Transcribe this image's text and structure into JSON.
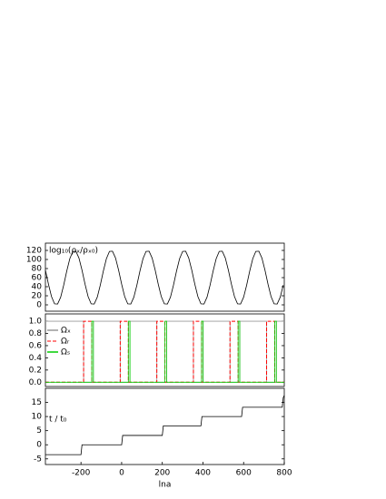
{
  "chart_data": [
    {
      "type": "line",
      "ylabel": "log₁₀(ρₓ/ρₓ₀)",
      "ylabel_color": "#ff0000",
      "xlim": [
        -375,
        800
      ],
      "ylim": [
        -14,
        136
      ],
      "yticks": [
        0,
        20,
        40,
        60,
        80,
        100,
        120
      ],
      "series": [
        {
          "color": "#000000",
          "x": [
            -375,
            -360,
            -345,
            -330,
            -315,
            -300,
            -285,
            -270,
            -255,
            -240,
            -225,
            -210,
            -195,
            -180,
            -165,
            -150,
            -135,
            -120,
            -105,
            -90,
            -75,
            -60,
            -45,
            -30,
            -15,
            0,
            15,
            30,
            45,
            60,
            75,
            90,
            105,
            120,
            135,
            150,
            165,
            180,
            195,
            210,
            225,
            240,
            255,
            270,
            285,
            300,
            315,
            330,
            345,
            360,
            375,
            390,
            405,
            420,
            435,
            450,
            465,
            480,
            495,
            510,
            525,
            540,
            555,
            570,
            585,
            600,
            615,
            630,
            645,
            660,
            675,
            690,
            705,
            720,
            735,
            750,
            765,
            780,
            795
          ],
          "values": [
            76.5,
            45.5,
            18.3,
            2.3,
            1.8,
            16.8,
            43.5,
            74.5,
            101.7,
            117.7,
            118.2,
            103.2,
            76.5,
            45.5,
            18.3,
            2.3,
            1.8,
            16.8,
            43.5,
            74.5,
            101.7,
            117.7,
            118.2,
            103.2,
            76.5,
            45.5,
            18.3,
            2.3,
            1.8,
            16.8,
            43.5,
            74.5,
            101.7,
            117.7,
            118.2,
            103.2,
            76.5,
            45.5,
            18.3,
            2.3,
            1.8,
            16.8,
            43.5,
            74.5,
            101.7,
            117.7,
            118.2,
            103.2,
            76.5,
            45.5,
            18.3,
            2.3,
            1.8,
            16.8,
            43.5,
            74.5,
            101.7,
            117.7,
            118.2,
            103.2,
            76.5,
            45.5,
            18.3,
            2.3,
            1.8,
            16.8,
            43.5,
            74.5,
            101.7,
            117.7,
            118.2,
            103.2,
            76.5,
            45.5,
            18.3,
            2.3,
            1.8,
            16.8,
            43.5
          ]
        }
      ]
    },
    {
      "type": "line",
      "legend": "upper left",
      "xlim": [
        -375,
        800
      ],
      "ylim": [
        -0.07,
        1.12
      ],
      "yticks": [
        {
          "value": 0,
          "label": "0.0"
        },
        {
          "value": 0.2,
          "label": "0.2"
        },
        {
          "value": 0.4,
          "label": "0.4"
        },
        {
          "value": 0.6,
          "label": "0.6"
        },
        {
          "value": 0.8,
          "label": "0.8"
        },
        {
          "value": 1,
          "label": "1.0"
        }
      ],
      "series": [
        {
          "name": "Ωₓ",
          "color": "#999999",
          "dash": false,
          "x": [
            -375,
            -187,
            -187,
            -139,
            -139,
            -7,
            -7,
            41,
            41,
            173,
            173,
            221,
            221,
            353,
            353,
            401,
            401,
            533,
            533,
            581,
            581,
            713,
            713,
            761,
            761,
            800
          ],
          "values": [
            1,
            1,
            0,
            0,
            1,
            1,
            0,
            0,
            1,
            1,
            0,
            0,
            1,
            1,
            0,
            0,
            1,
            1,
            0,
            0,
            1,
            1,
            0,
            0,
            1,
            1
          ]
        },
        {
          "name": "Ωᵣ",
          "color": "#ff0000",
          "dash": true,
          "x": [
            -375,
            -187,
            -187,
            -147,
            -147,
            -7,
            -7,
            33,
            33,
            173,
            173,
            213,
            213,
            353,
            353,
            393,
            393,
            533,
            533,
            573,
            573,
            713,
            713,
            753,
            753,
            800
          ],
          "values": [
            0,
            0,
            1,
            1,
            0,
            0,
            1,
            1,
            0,
            0,
            1,
            1,
            0,
            0,
            1,
            1,
            0,
            0,
            1,
            1,
            0,
            0,
            1,
            1,
            0,
            0
          ]
        },
        {
          "name": "Ωₛ",
          "color": "#00cc00",
          "dash": false,
          "x": [
            -375,
            -147,
            -147,
            -139,
            -139,
            33,
            33,
            41,
            41,
            213,
            213,
            221,
            221,
            393,
            393,
            401,
            401,
            573,
            573,
            581,
            581,
            753,
            753,
            761,
            761,
            800
          ],
          "values": [
            0,
            0,
            1,
            1,
            0,
            0,
            1,
            1,
            0,
            0,
            1,
            1,
            0,
            0,
            1,
            1,
            0,
            0,
            1,
            1,
            0,
            0,
            1,
            1,
            0,
            0
          ]
        }
      ]
    },
    {
      "type": "line",
      "ylabel": "t / t₀",
      "xlabel": "lna",
      "xlim": [
        -375,
        800
      ],
      "xticks": [
        -200,
        0,
        200,
        400,
        600,
        800
      ],
      "ylim": [
        -7,
        20
      ],
      "yticks": [
        -5,
        0,
        5,
        10,
        15
      ],
      "series": [
        {
          "color": "#000000",
          "x": [
            -375,
            -200,
            -195,
            0,
            5,
            200,
            205,
            390,
            395,
            590,
            595,
            790,
            795,
            800
          ],
          "values": [
            -3.5,
            -3.5,
            0,
            0,
            3.3,
            3.3,
            6.7,
            6.7,
            10,
            10,
            13.3,
            13.3,
            16.7,
            17.5
          ]
        }
      ]
    }
  ]
}
